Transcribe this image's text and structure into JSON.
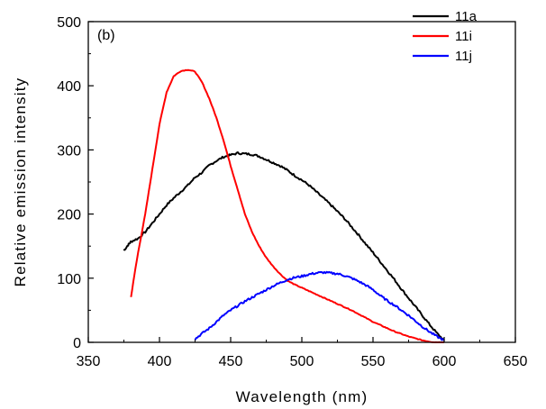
{
  "chart_data": {
    "type": "line",
    "panel_label": "(b)",
    "title": "",
    "xlabel": "Wavelength (nm)",
    "ylabel": "Relative emission intensity",
    "xlim": [
      350,
      650
    ],
    "ylim": [
      0,
      500
    ],
    "xticks": [
      350,
      400,
      450,
      500,
      550,
      600,
      650
    ],
    "yticks": [
      0,
      100,
      200,
      300,
      400,
      500
    ],
    "grid": false,
    "legend_position": "top-right",
    "series": [
      {
        "name": "11a",
        "color": "#000000",
        "x": [
          375,
          378,
          380,
          385,
          390,
          395,
          400,
          405,
          410,
          415,
          420,
          425,
          430,
          435,
          440,
          445,
          450,
          455,
          460,
          465,
          470,
          475,
          480,
          485,
          490,
          495,
          500,
          505,
          510,
          515,
          520,
          525,
          530,
          535,
          540,
          545,
          550,
          555,
          560,
          565,
          570,
          575,
          580,
          585,
          590,
          595,
          600
        ],
        "y": [
          143,
          152,
          157,
          162,
          172,
          186,
          200,
          214,
          225,
          235,
          245,
          257,
          265,
          276,
          283,
          289,
          292,
          295,
          294,
          293,
          290,
          285,
          280,
          275,
          268,
          260,
          253,
          245,
          235,
          225,
          215,
          204,
          193,
          180,
          167,
          153,
          140,
          126,
          112,
          98,
          83,
          69,
          55,
          41,
          27,
          14,
          3
        ]
      },
      {
        "name": "11i",
        "color": "#ff0000",
        "x": [
          380,
          382,
          385,
          390,
          395,
          400,
          405,
          410,
          415,
          420,
          425,
          430,
          435,
          440,
          445,
          450,
          455,
          460,
          465,
          470,
          475,
          480,
          485,
          490,
          495,
          500,
          505,
          510,
          515,
          520,
          525,
          530,
          535,
          540,
          545,
          550,
          555,
          560,
          565,
          570,
          575,
          580,
          585,
          590,
          595,
          600
        ],
        "y": [
          70,
          100,
          140,
          200,
          270,
          340,
          390,
          415,
          423,
          425,
          422,
          405,
          380,
          350,
          315,
          275,
          238,
          200,
          172,
          150,
          132,
          118,
          106,
          96,
          90,
          85,
          80,
          75,
          70,
          65,
          60,
          55,
          50,
          44,
          38,
          32,
          27,
          22,
          17,
          13,
          9,
          6,
          3,
          1,
          0,
          0
        ]
      },
      {
        "name": "11j",
        "color": "#0000ff",
        "x": [
          425,
          430,
          435,
          440,
          445,
          450,
          455,
          460,
          465,
          470,
          475,
          480,
          485,
          490,
          495,
          500,
          505,
          510,
          515,
          520,
          525,
          530,
          535,
          540,
          545,
          550,
          555,
          560,
          565,
          570,
          575,
          580,
          585,
          590,
          595,
          600
        ],
        "y": [
          5,
          14,
          22,
          32,
          42,
          50,
          57,
          64,
          70,
          76,
          82,
          88,
          93,
          98,
          101,
          103,
          106,
          108,
          109,
          108,
          107,
          104,
          100,
          95,
          89,
          82,
          73,
          65,
          58,
          50,
          42,
          33,
          24,
          16,
          9,
          3
        ]
      }
    ]
  }
}
